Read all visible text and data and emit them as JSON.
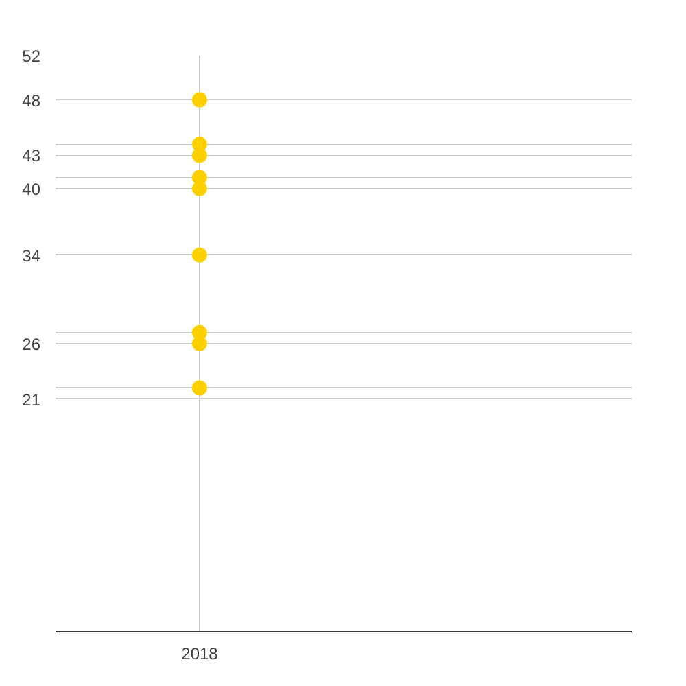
{
  "chart_data": {
    "type": "scatter",
    "categories": [
      "2018",
      null
    ],
    "series": [
      {
        "color": "#ffd000",
        "values": [
          48,
          null
        ]
      },
      {
        "color": "#ffd000",
        "values": [
          44,
          null
        ]
      },
      {
        "color": "#ffd000",
        "values": [
          43,
          null
        ]
      },
      {
        "color": "#ffd000",
        "values": [
          41,
          null
        ]
      },
      {
        "color": "#ffd000",
        "values": [
          40,
          null
        ]
      },
      {
        "color": "#ffd000",
        "values": [
          34,
          null
        ]
      },
      {
        "color": "#ffd000",
        "values": [
          27,
          null
        ]
      },
      {
        "color": "#ffd000",
        "values": [
          26,
          null
        ]
      },
      {
        "color": "#ffd000",
        "values": [
          22,
          null
        ]
      }
    ],
    "ylim": [
      0,
      52
    ],
    "yticks": [
      52,
      48,
      {
        "value": 44,
        "label": null
      },
      43,
      {
        "value": 41,
        "label": null
      },
      40,
      34,
      {
        "value": 27,
        "label": null
      },
      26,
      {
        "value": 22,
        "label": null
      },
      21
    ],
    "grid": true,
    "marker": "circle"
  }
}
